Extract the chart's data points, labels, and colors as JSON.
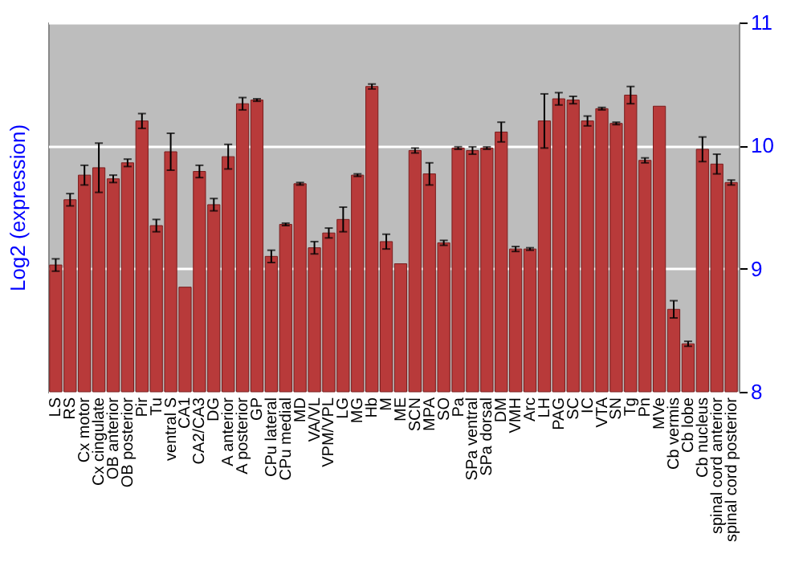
{
  "chart_data": {
    "type": "bar",
    "ylabel": "Log2 (expression)",
    "categories": [
      "LS",
      "RS",
      "Cx motor",
      "Cx cingulate",
      "OB anterior",
      "OB posterior",
      "Pir",
      "Tu",
      "ventral S",
      "CA1",
      "CA2/CA3",
      "DG",
      "A anterior",
      "A posterior",
      "GP",
      "CPu lateral",
      "CPu medial",
      "MD",
      "VA/VL",
      "VPM/VPL",
      "LG",
      "MG",
      "Hb",
      "M",
      "ME",
      "SCN",
      "MPA",
      "SO",
      "Pa",
      "SPa ventral",
      "SPa dorsal",
      "DM",
      "VMH",
      "Arc",
      "LH",
      "PAG",
      "SC",
      "IC",
      "VTA",
      "SN",
      "Tg",
      "Pn",
      "MVe",
      "Cb vermis",
      "Cb lobe",
      "Cb nucleus",
      "spinal cord anterior",
      "spinal cord posterior"
    ],
    "values": [
      9.03,
      9.56,
      9.76,
      9.82,
      9.73,
      9.86,
      10.2,
      9.35,
      9.95,
      8.85,
      9.79,
      9.52,
      9.91,
      10.34,
      10.37,
      9.1,
      9.36,
      9.69,
      9.17,
      9.29,
      9.4,
      9.76,
      10.48,
      9.22,
      9.04,
      9.96,
      9.77,
      9.21,
      9.98,
      9.96,
      9.98,
      10.11,
      9.16,
      9.16,
      10.2,
      10.38,
      10.37,
      10.2,
      10.3,
      10.18,
      10.41,
      9.88,
      10.32,
      8.67,
      8.39,
      9.97,
      9.85,
      9.7
    ],
    "errors": [
      0.05,
      0.05,
      0.08,
      0.2,
      0.03,
      0.03,
      0.06,
      0.05,
      0.15,
      null,
      0.05,
      0.05,
      0.1,
      0.05,
      0.01,
      0.05,
      0.01,
      0.01,
      0.05,
      0.04,
      0.1,
      0.01,
      0.02,
      0.06,
      null,
      0.02,
      0.09,
      0.02,
      0.01,
      0.03,
      0.01,
      0.08,
      0.02,
      0.01,
      0.22,
      0.05,
      0.03,
      0.04,
      0.01,
      0.01,
      0.07,
      0.02,
      null,
      0.07,
      0.02,
      0.1,
      0.08,
      0.02
    ],
    "color": "#b83a3a",
    "ylim": [
      8,
      11
    ],
    "yticks": [
      8,
      9,
      10,
      11
    ],
    "grid": "y"
  }
}
